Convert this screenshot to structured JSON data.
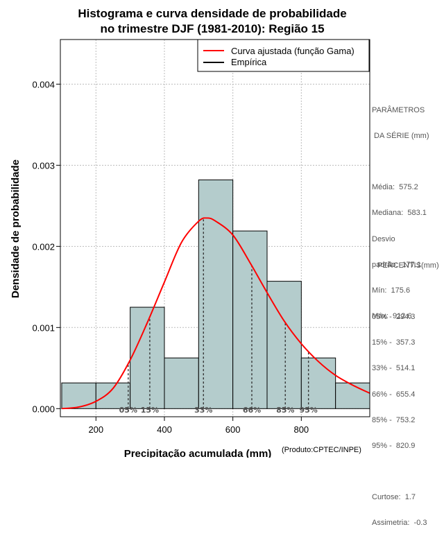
{
  "chart_data": {
    "type": "bar",
    "title": [
      "Histograma e curva densidade de probabilidade",
      "no trimestre DJF (1981-2010): Região 15"
    ],
    "xlabel": "Precipitação acumulada (mm)",
    "ylabel": "Densidade de probabilidade",
    "credit": "(Produto:CPTEC/INPE)",
    "xlim": [
      96,
      1000
    ],
    "ylim": [
      -0.0001,
      0.00455
    ],
    "x_ticks": [
      200,
      400,
      600,
      800
    ],
    "y_ticks": [
      0.0,
      0.001,
      0.002,
      0.003,
      0.004
    ],
    "y_tick_labels": [
      "0.000",
      "0.001",
      "0.002",
      "0.003",
      "0.004"
    ],
    "grid": true,
    "bins": [
      {
        "start": 100,
        "end": 200,
        "density": 0.000317
      },
      {
        "start": 200,
        "end": 300,
        "density": 0.000317
      },
      {
        "start": 300,
        "end": 400,
        "density": 0.00125
      },
      {
        "start": 400,
        "end": 500,
        "density": 0.000625
      },
      {
        "start": 500,
        "end": 600,
        "density": 0.00282
      },
      {
        "start": 600,
        "end": 700,
        "density": 0.00219
      },
      {
        "start": 700,
        "end": 800,
        "density": 0.00157
      },
      {
        "start": 800,
        "end": 900,
        "density": 0.000625
      },
      {
        "start": 900,
        "end": 1000,
        "density": 0.000317
      }
    ],
    "bar_color": "#b4cccc",
    "curve": {
      "name": "Curva ajustada (função Gama)",
      "color": "#ff0000",
      "x": [
        100,
        150,
        200,
        250,
        300,
        350,
        400,
        450,
        500,
        525,
        550,
        600,
        650,
        700,
        750,
        800,
        850,
        900,
        950,
        1000
      ],
      "y": [
        0.0,
        2e-05,
        9e-05,
        0.00025,
        0.0006,
        0.00106,
        0.00156,
        0.00205,
        0.00231,
        0.00235,
        0.00231,
        0.00214,
        0.0018,
        0.00143,
        0.00108,
        0.0008,
        0.00058,
        0.00041,
        0.00029,
        0.00019
      ]
    },
    "empirical": {
      "name": "Empírica",
      "color": "#000000"
    },
    "legend_position": "top-right",
    "percentile_markers": [
      {
        "label": "05%",
        "value": 294.3
      },
      {
        "label": "15%",
        "value": 357.3
      },
      {
        "label": "33%",
        "value": 514.1
      },
      {
        "label": "66%",
        "value": 655.4
      },
      {
        "label": "85%",
        "value": 753.2
      },
      {
        "label": "95%",
        "value": 820.9
      }
    ]
  },
  "sidebar": {
    "params_title_1": "PARÂMETROS",
    "params_title_2": " DA SÉRIE (mm)",
    "params": [
      {
        "label": "Média:",
        "value": "575.2"
      },
      {
        "label": "Mediana:",
        "value": "583.1"
      },
      {
        "label": "Desvio",
        "value": ""
      },
      {
        "label": "padrão:",
        "value": "177.1"
      },
      {
        "label": "Mín:",
        "value": "175.6"
      },
      {
        "label": "Máx:",
        "value": "912.6"
      }
    ],
    "percentis_title": "PERCENTIS(mm)",
    "percentis": [
      {
        "label": "05% -",
        "value": "294.3"
      },
      {
        "label": "15% -",
        "value": "357.3"
      },
      {
        "label": "33% -",
        "value": "514.1"
      },
      {
        "label": "66% -",
        "value": "655.4"
      },
      {
        "label": "85% -",
        "value": "753.2"
      },
      {
        "label": "95% -",
        "value": "820.9"
      }
    ],
    "stats": [
      {
        "label": "Curtose:",
        "value": "1.7"
      },
      {
        "label": "Assimetria:",
        "value": "-0.3"
      }
    ]
  }
}
